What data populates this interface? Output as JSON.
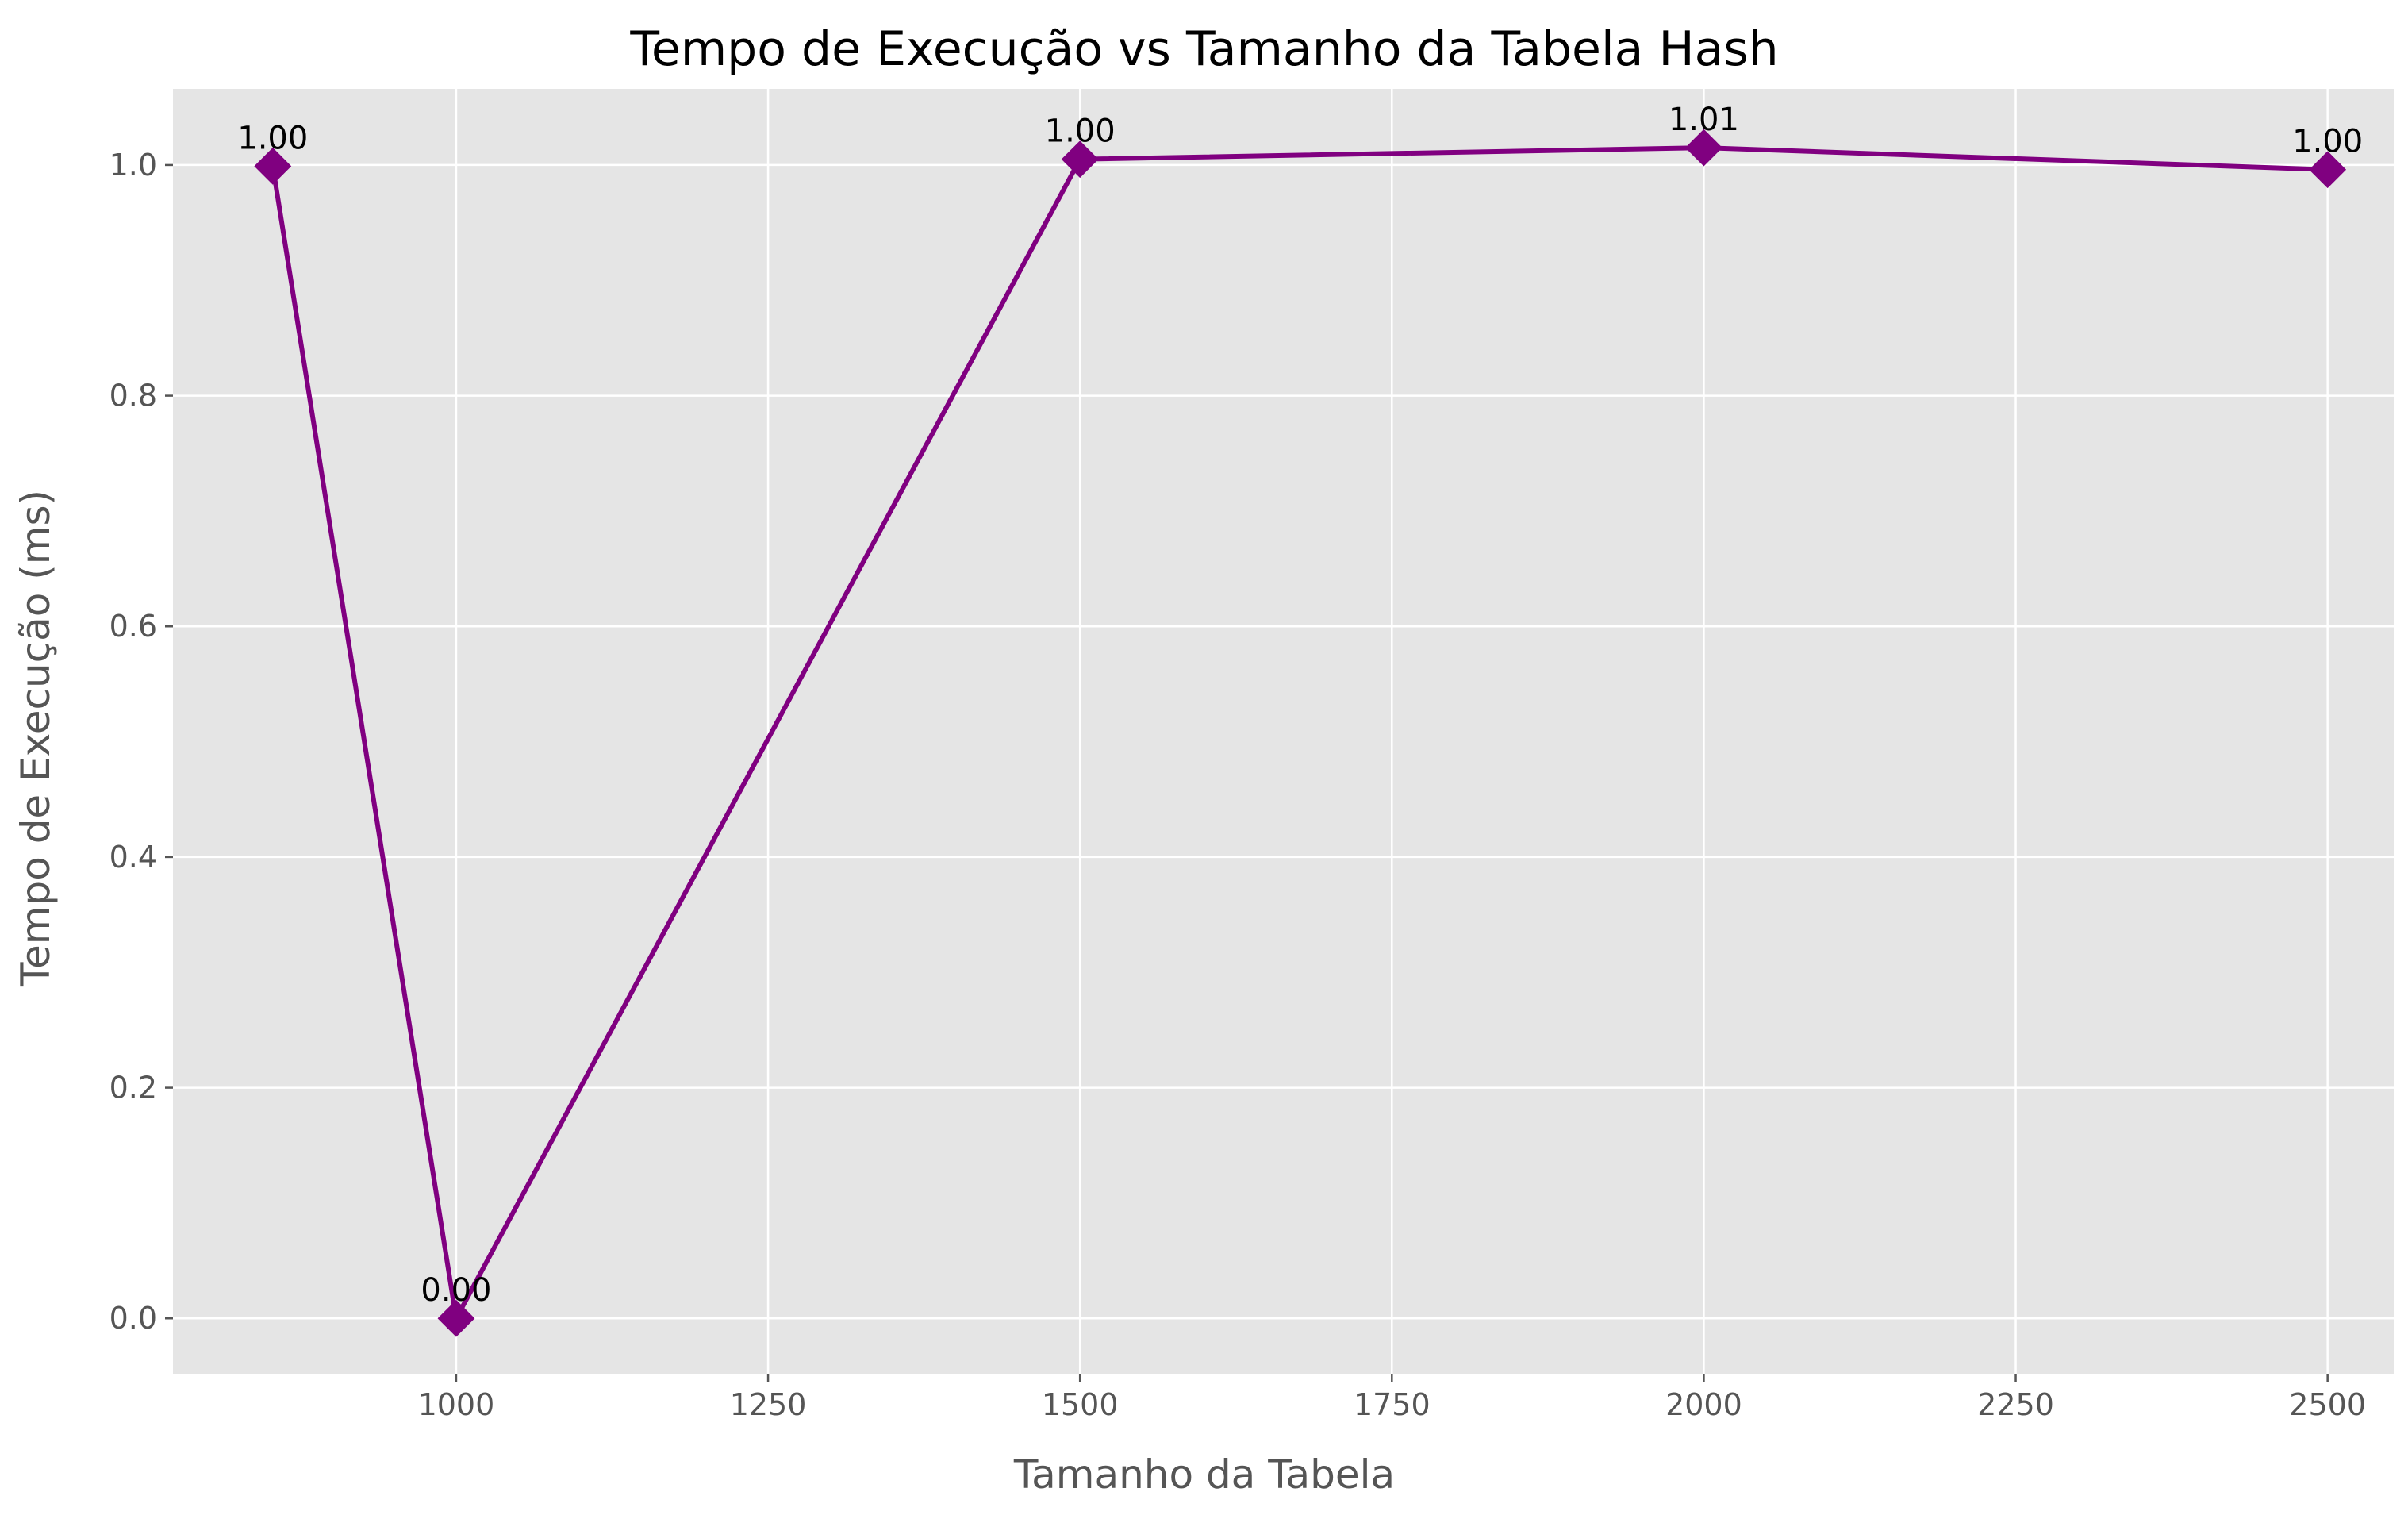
{
  "chart_data": {
    "type": "line",
    "title": "Tempo de Execução vs Tamanho da Tabela Hash",
    "xlabel": "Tamanho da Tabela",
    "ylabel": "Tempo de Execução (ms)",
    "xlim": [
      773,
      2553
    ],
    "ylim": [
      -0.048,
      1.066
    ],
    "x_ticks": [
      1000,
      1250,
      1500,
      1750,
      2000,
      2250,
      2500
    ],
    "y_ticks": [
      0.0,
      0.2,
      0.4,
      0.6,
      0.8,
      1.0
    ],
    "x_tick_labels": [
      "1000",
      "1250",
      "1500",
      "1750",
      "2000",
      "2250",
      "2500"
    ],
    "y_tick_labels": [
      "0.0",
      "0.2",
      "0.4",
      "0.6",
      "0.8",
      "1.0"
    ],
    "grid": true,
    "background_color": "#e5e5e5",
    "line_color": "#800080",
    "marker": "diamond",
    "series": [
      {
        "x": [
          853,
          1000,
          1500,
          2000,
          2500
        ],
        "y": [
          0.999,
          0.0,
          1.005,
          1.015,
          0.996
        ],
        "labels": [
          "1.00",
          "0.00",
          "1.00",
          "1.01",
          "1.00"
        ]
      }
    ]
  }
}
